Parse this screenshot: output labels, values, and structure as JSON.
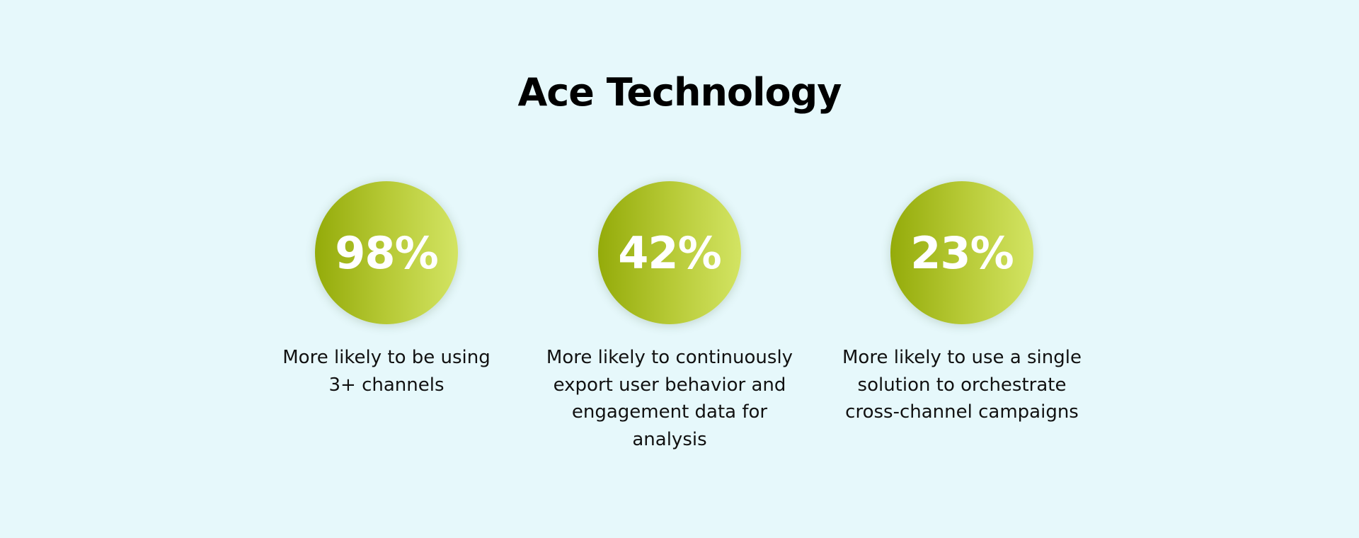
{
  "title": "Ace Technology",
  "stats": [
    {
      "value": "98%",
      "description": "More likely to be using 3+ channels"
    },
    {
      "value": "42%",
      "description": "More likely to continuously export user behavior and engagement data for analysis"
    },
    {
      "value": "23%",
      "description": "More likely to use a single solution to orchestrate cross-channel campaigns"
    }
  ],
  "colors": {
    "background": "#e6f8fb",
    "gradient_start": "#94ab0a",
    "gradient_end": "#d3e463",
    "value_text": "#ffffff"
  }
}
